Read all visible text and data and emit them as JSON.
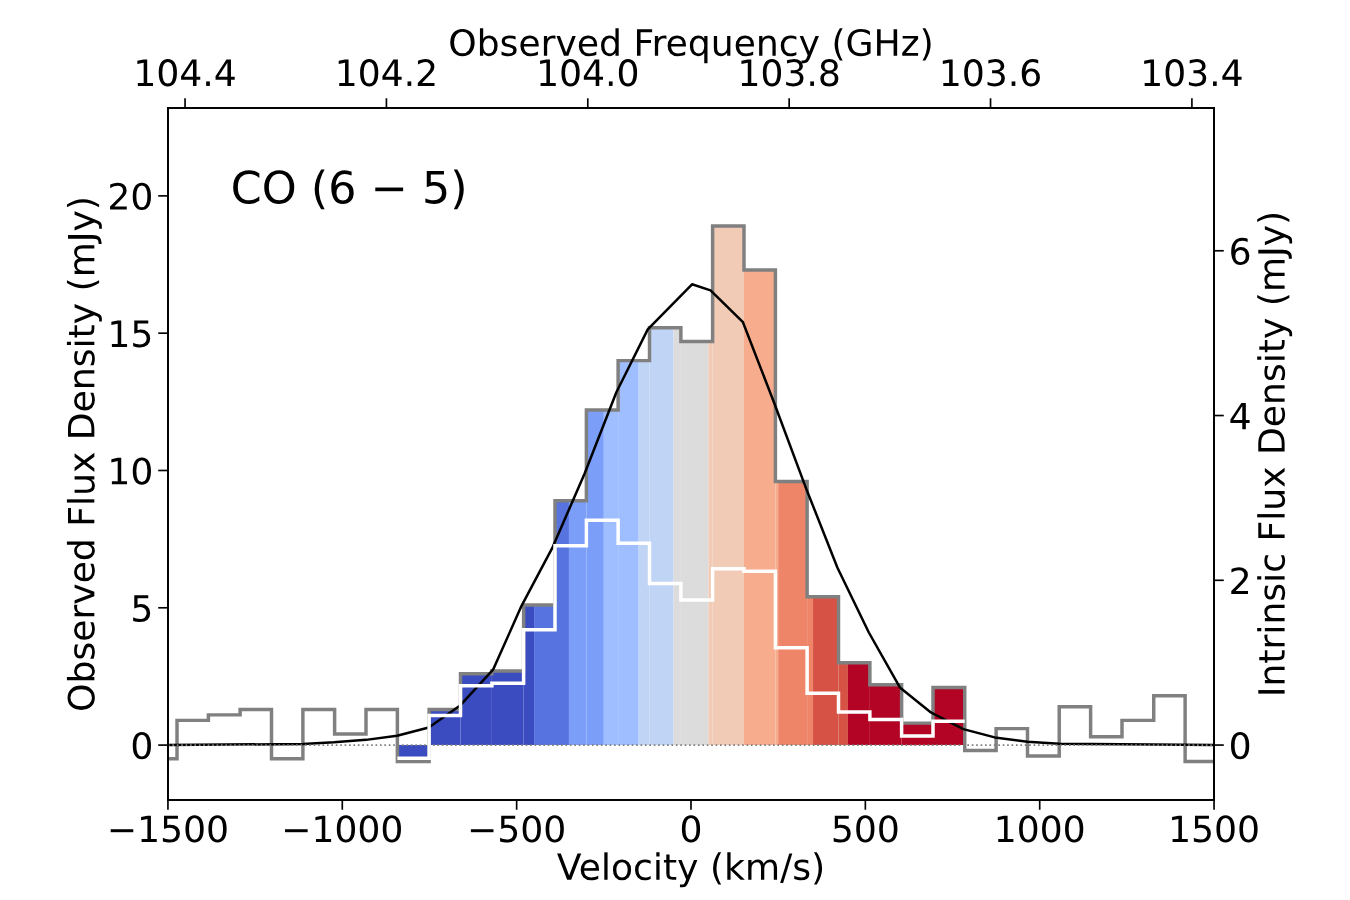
{
  "chart_data": {
    "type": "histogram",
    "xlabel": "Velocity (km/s)",
    "ylabel": "Observed Flux Density (mJy)",
    "y2label": "Intrinsic Flux Density (mJy)",
    "x2label": "Observed Frequency (GHz)",
    "annotations": [
      "CO (6 − 5)"
    ],
    "xlim": [
      -1500,
      1500
    ],
    "xticks": [
      {
        "value": -1500,
        "label": "−1500"
      },
      {
        "value": -1000,
        "label": "−1000"
      },
      {
        "value": -500,
        "label": "−500"
      },
      0,
      500,
      1000,
      1500
    ],
    "ylim": [
      -2,
      23.2
    ],
    "yticks": [
      0,
      5,
      10,
      15,
      20
    ],
    "y2lim": [
      -0.667,
      7.733
    ],
    "y2ticks": [
      0,
      2,
      4,
      6
    ],
    "x2lim": [
      104.417,
      103.378
    ],
    "x2ticks": [
      104.4,
      104.2,
      {
        "value": 104,
        "label": "104.0"
      },
      103.8,
      103.6,
      103.4
    ],
    "grid": false,
    "legend": false,
    "ref_lines": [
      {
        "axis": "y",
        "value": 0,
        "color": "#7f7f7f",
        "line_style": "dotted"
      }
    ],
    "series": [
      {
        "bins": [
          -842,
          -751,
          -661,
          -571,
          -480,
          -450,
          -390,
          -350,
          -300,
          -250,
          -209,
          -150,
          -119,
          -50,
          -29,
          50,
          62,
          152,
          242,
          250,
          333,
          350,
          423,
          450,
          513,
          604,
          694,
          785
        ],
        "values": [
          -0.6,
          1.3,
          2.6,
          2.7,
          5.1,
          5.1,
          8.9,
          8.9,
          12.2,
          12.2,
          14.0,
          14.0,
          15.2,
          15.2,
          14.7,
          14.7,
          18.9,
          17.3,
          9.6,
          9.6,
          5.4,
          5.4,
          3.0,
          3.0,
          2.2,
          0.8,
          2.1
        ],
        "colors": [
          "#3b4cc0",
          "#3b4cc0",
          "#3b4cc0",
          "#3b4cc0",
          "#3b4cc0",
          "#5673e0",
          "#5673e0",
          "#7b9ff9",
          "#7b9ff9",
          "#9ebeff",
          "#9ebeff",
          "#c0d4f5",
          "#c0d4f5",
          "#dddcdc",
          "#dddcdc",
          "#f2cbb7",
          "#f2cbb7",
          "#f7ac8e",
          "#f7ac8e",
          "#ee8468",
          "#ee8468",
          "#d65244",
          "#d65244",
          "#b40426",
          "#b40426",
          "#b40426",
          "#b40426"
        ]
      },
      {
        "color": "#808080",
        "bins": [
          -1500,
          -1474,
          -1384,
          -1293,
          -1203,
          -1113,
          -1022,
          -932,
          -842,
          -751,
          -661,
          -571,
          -480,
          -390,
          -300,
          -209,
          -119,
          -29,
          62,
          152,
          242,
          333,
          423,
          513,
          604,
          694,
          785,
          875,
          965,
          1056,
          1146,
          1236,
          1327,
          1417,
          1500
        ],
        "values": [
          -0.5,
          0.9,
          1.1,
          1.3,
          -0.5,
          1.3,
          0.4,
          1.3,
          -0.6,
          1.3,
          2.6,
          2.7,
          5.1,
          8.9,
          12.2,
          14.0,
          15.2,
          14.7,
          18.9,
          17.3,
          9.6,
          5.4,
          3.0,
          2.2,
          0.8,
          2.1,
          -0.2,
          0.6,
          -0.4,
          1.4,
          0.3,
          0.9,
          1.8,
          -0.6
        ]
      },
      {
        "axis": "y2",
        "color": "#ffffff",
        "bins": [
          -842,
          -751,
          -661,
          -571,
          -480,
          -390,
          -300,
          -209,
          -119,
          -29,
          62,
          152,
          242,
          333,
          423,
          513,
          604,
          694,
          785
        ],
        "values": [
          -0.16,
          0.36,
          0.72,
          0.75,
          1.4,
          2.42,
          2.73,
          2.45,
          1.96,
          1.76,
          2.14,
          2.11,
          1.18,
          0.63,
          0.4,
          0.31,
          0.11,
          0.29
        ]
      },
      {
        "type": "line",
        "color": "#000000",
        "x": [
          -1500,
          -1113,
          -1024,
          -932,
          -843,
          -752,
          -663,
          -567,
          -486,
          -397,
          -305,
          -214,
          -124,
          3,
          56,
          149,
          237,
          330,
          420,
          510,
          599,
          688,
          781,
          871,
          965,
          1056,
          1500
        ],
        "values": [
          0.0,
          0.04,
          0.1,
          0.19,
          0.34,
          0.64,
          1.43,
          2.76,
          5.07,
          7.2,
          9.89,
          12.85,
          15.14,
          16.78,
          16.56,
          15.4,
          12.51,
          9.35,
          6.46,
          4.1,
          2.1,
          1.19,
          0.58,
          0.28,
          0.12,
          0.05,
          0.0
        ]
      }
    ]
  }
}
